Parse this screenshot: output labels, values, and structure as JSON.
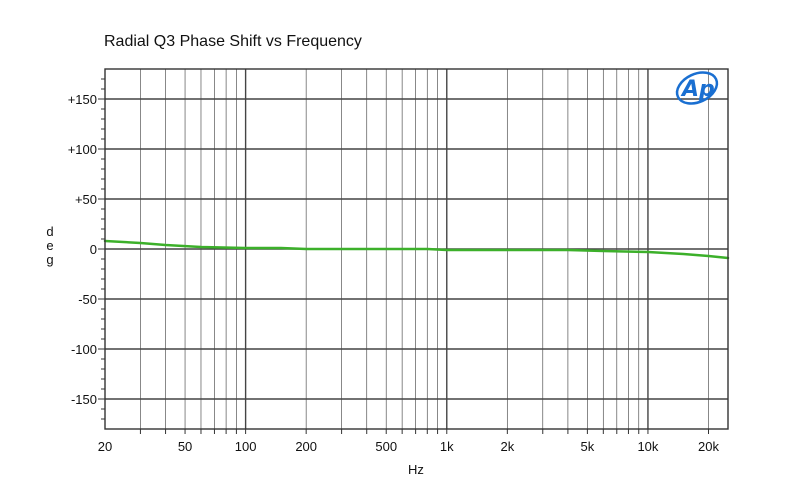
{
  "chart_data": {
    "type": "line",
    "title": "Radial Q3 Phase Shift vs Frequency",
    "xlabel": "Hz",
    "ylabel": "deg",
    "x_scale": "log",
    "xlim": [
      20,
      25000
    ],
    "ylim": [
      -180,
      180
    ],
    "grid": true,
    "x_tick_values": [
      20,
      50,
      100,
      200,
      500,
      1000,
      2000,
      5000,
      10000,
      20000
    ],
    "x_tick_labels": [
      "20",
      "50",
      "100",
      "200",
      "500",
      "1k",
      "2k",
      "5k",
      "10k",
      "20k"
    ],
    "y_tick_values": [
      150,
      100,
      50,
      0,
      -50,
      -100,
      -150
    ],
    "y_tick_labels": [
      "+150",
      "+100",
      "+50",
      "0",
      "-50",
      "-100",
      "-150"
    ],
    "series": [
      {
        "color": "#3cb02a",
        "x": [
          20,
          30,
          40,
          60,
          100,
          150,
          200,
          300,
          500,
          800,
          1000,
          2000,
          4000,
          6000,
          10000,
          15000,
          20000,
          25000
        ],
        "y": [
          8,
          6,
          4,
          2,
          1,
          1,
          0,
          0,
          0,
          0,
          -1,
          -1,
          -1,
          -2,
          -3,
          -5,
          -7,
          -9
        ]
      }
    ]
  },
  "logo": {
    "text": "Ap",
    "color": "#1a6fd1"
  }
}
